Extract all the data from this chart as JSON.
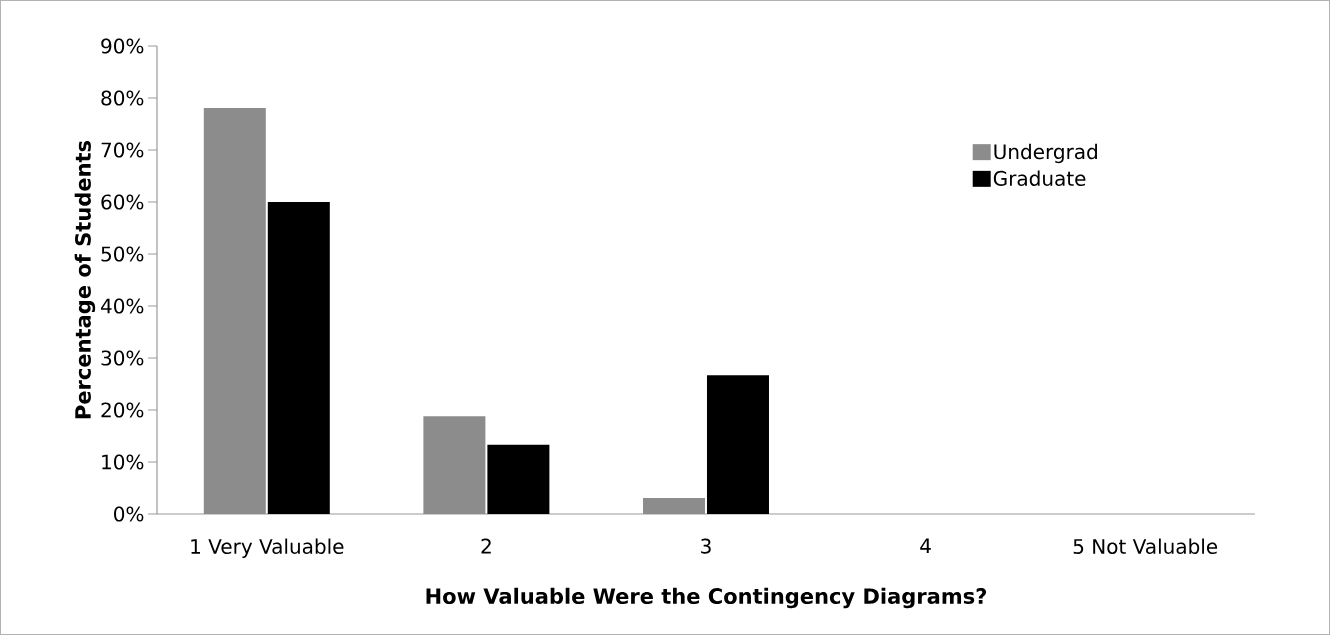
{
  "chart_data": {
    "type": "bar",
    "xlabel": "How Valuable Were the Contingency Diagrams?",
    "ylabel": "Percentage of Students",
    "categories": [
      "1 Very Valuable",
      "2",
      "3",
      "4",
      "5 Not Valuable"
    ],
    "series": [
      {
        "name": "Undergrad",
        "color": "#8c8c8c",
        "values": [
          78.1,
          18.8,
          3.1,
          0,
          0
        ]
      },
      {
        "name": "Graduate",
        "color": "#000000",
        "values": [
          60,
          13.3,
          26.7,
          0,
          0
        ]
      }
    ],
    "ylim": [
      0,
      90
    ],
    "yticks": [
      {
        "value": 0,
        "label": "0%"
      },
      {
        "value": 10,
        "label": "10%"
      },
      {
        "value": 20,
        "label": "20%"
      },
      {
        "value": 30,
        "label": "30%"
      },
      {
        "value": 40,
        "label": "40%"
      },
      {
        "value": 50,
        "label": "50%"
      },
      {
        "value": 60,
        "label": "60%"
      },
      {
        "value": 70,
        "label": "70%"
      },
      {
        "value": 80,
        "label": "80%"
      },
      {
        "value": 90,
        "label": "90%"
      }
    ],
    "grid": false,
    "legend": "top right"
  }
}
